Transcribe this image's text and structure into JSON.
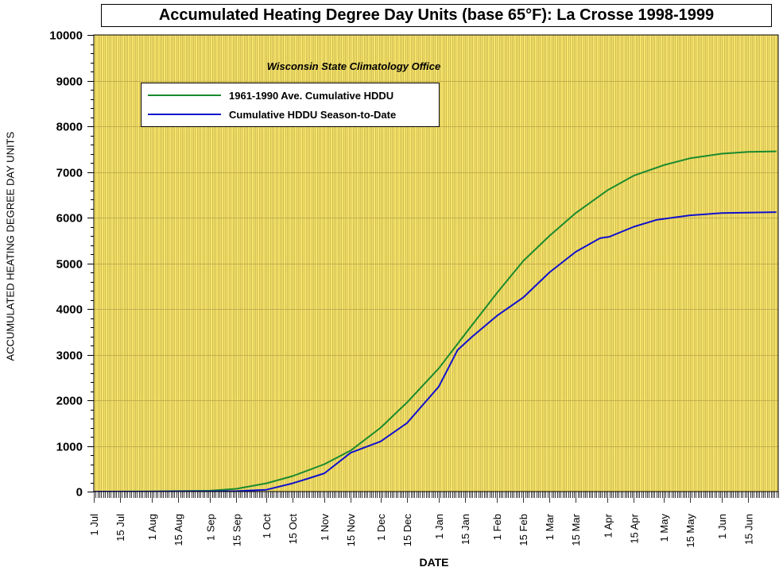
{
  "chart_data": {
    "type": "line",
    "title": "Accumulated Heating Degree Day Units (base 65°F): La Crosse 1998-1999",
    "subtitle": "Wisconsin State Climatology Office",
    "xlabel": "DATE",
    "ylabel": "ACCUMULATED HEATING DEGREE DAY UNITS",
    "x_axis_days": 365,
    "ylim": [
      0,
      10000
    ],
    "yticks": [
      0,
      1000,
      2000,
      3000,
      4000,
      5000,
      6000,
      7000,
      8000,
      9000,
      10000
    ],
    "xticks": [
      {
        "label": "1 Jul",
        "day": 0
      },
      {
        "label": "15 Jul",
        "day": 14
      },
      {
        "label": "1 Aug",
        "day": 31
      },
      {
        "label": "15 Aug",
        "day": 45
      },
      {
        "label": "1 Sep",
        "day": 62
      },
      {
        "label": "15 Sep",
        "day": 76
      },
      {
        "label": "1 Oct",
        "day": 92
      },
      {
        "label": "15 Oct",
        "day": 106
      },
      {
        "label": "1 Nov",
        "day": 123
      },
      {
        "label": "15 Nov",
        "day": 137
      },
      {
        "label": "1 Dec",
        "day": 153
      },
      {
        "label": "15 Dec",
        "day": 167
      },
      {
        "label": "1 Jan",
        "day": 184
      },
      {
        "label": "15 Jan",
        "day": 198
      },
      {
        "label": "1 Feb",
        "day": 215
      },
      {
        "label": "15 Feb",
        "day": 229
      },
      {
        "label": "1 Mar",
        "day": 243
      },
      {
        "label": "15 Mar",
        "day": 257
      },
      {
        "label": "1 Apr",
        "day": 274
      },
      {
        "label": "15 Apr",
        "day": 288
      },
      {
        "label": "1 May",
        "day": 304
      },
      {
        "label": "15 May",
        "day": 318
      },
      {
        "label": "1 Jun",
        "day": 335
      },
      {
        "label": "15 Jun",
        "day": 349
      }
    ],
    "grid": true,
    "legend_position": "top-left",
    "background_color": "#f7e56a",
    "grid_color": "#b8a24a",
    "series": [
      {
        "name": "1961-1990 Ave. Cumulative HDDU",
        "color": "#1b8a2e",
        "points": [
          [
            0,
            0
          ],
          [
            31,
            5
          ],
          [
            45,
            10
          ],
          [
            62,
            20
          ],
          [
            76,
            60
          ],
          [
            92,
            180
          ],
          [
            106,
            340
          ],
          [
            123,
            600
          ],
          [
            137,
            900
          ],
          [
            153,
            1400
          ],
          [
            167,
            1950
          ],
          [
            184,
            2700
          ],
          [
            198,
            3450
          ],
          [
            215,
            4350
          ],
          [
            229,
            5050
          ],
          [
            243,
            5600
          ],
          [
            257,
            6100
          ],
          [
            274,
            6600
          ],
          [
            288,
            6920
          ],
          [
            304,
            7150
          ],
          [
            318,
            7300
          ],
          [
            335,
            7400
          ],
          [
            349,
            7440
          ],
          [
            364,
            7450
          ]
        ]
      },
      {
        "name": "Cumulative HDDU Season-to-Date",
        "color": "#1111cc",
        "points": [
          [
            0,
            0
          ],
          [
            31,
            0
          ],
          [
            45,
            5
          ],
          [
            62,
            5
          ],
          [
            76,
            10
          ],
          [
            92,
            40
          ],
          [
            106,
            180
          ],
          [
            113,
            270
          ],
          [
            123,
            400
          ],
          [
            137,
            850
          ],
          [
            153,
            1100
          ],
          [
            167,
            1500
          ],
          [
            184,
            2300
          ],
          [
            194,
            3100
          ],
          [
            202,
            3400
          ],
          [
            215,
            3850
          ],
          [
            229,
            4250
          ],
          [
            243,
            4800
          ],
          [
            257,
            5250
          ],
          [
            270,
            5550
          ],
          [
            275,
            5580
          ],
          [
            288,
            5800
          ],
          [
            300,
            5950
          ],
          [
            318,
            6050
          ],
          [
            335,
            6100
          ],
          [
            364,
            6120
          ]
        ]
      }
    ]
  }
}
